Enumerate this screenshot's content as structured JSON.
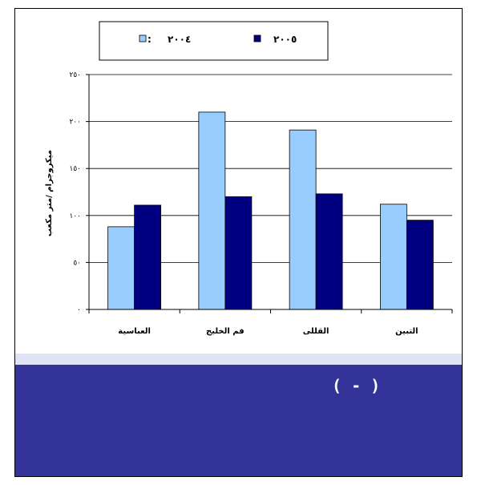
{
  "chart_data": {
    "type": "bar",
    "categories": [
      "العباسية",
      "فم الخليج",
      "القللى",
      "التبين"
    ],
    "series": [
      {
        "name": "٢٠٠٤",
        "values": [
          88,
          210,
          191,
          112
        ],
        "color": "#99ccff"
      },
      {
        "name": "٢٠٠٥",
        "values": [
          111,
          120,
          123,
          95
        ],
        "color": "#000080"
      }
    ],
    "title": "",
    "xlabel": "",
    "ylabel": "ميكروجرام /متر مكعب",
    "ylim": [
      0,
      250
    ],
    "yticks": [
      0,
      50,
      100,
      150,
      200,
      250
    ],
    "ytick_labels": [
      "٠",
      "٥٠",
      "١٠٠",
      "١٥٠",
      "٢٠٠",
      "٢٥٠"
    ],
    "grid": true,
    "legend_position": "top"
  },
  "legend": {
    "separator_2004": ":"
  },
  "caption": "( - )"
}
